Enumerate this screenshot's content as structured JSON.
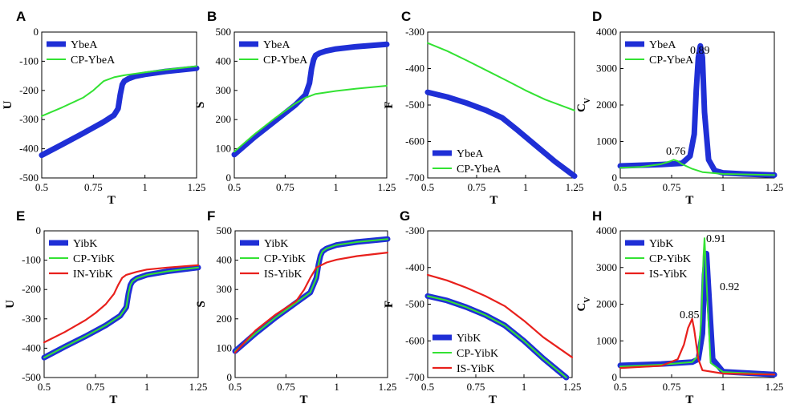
{
  "chart_data": [
    {
      "panel": "A",
      "type": "line",
      "xlabel": "T",
      "ylabel": "U",
      "xlim": [
        0.5,
        1.25
      ],
      "ylim": [
        -500,
        0
      ],
      "xticks": [
        "0.5",
        "0.75",
        "1",
        "1.25"
      ],
      "yticks": [
        "-500",
        "-400",
        "-300",
        "-200",
        "-100",
        "0"
      ],
      "legend_position": "top-left",
      "series": [
        {
          "name": "YbeA",
          "color": "#1f2fd6",
          "x": [
            0.5,
            0.6,
            0.7,
            0.8,
            0.85,
            0.87,
            0.88,
            0.89,
            0.9,
            0.92,
            0.95,
            1.0,
            1.1,
            1.25
          ],
          "y": [
            -422,
            -385,
            -347,
            -308,
            -285,
            -262,
            -215,
            -180,
            -168,
            -160,
            -152,
            -145,
            -135,
            -124
          ]
        },
        {
          "name": "CP-YbeA",
          "color": "#33e233",
          "x": [
            0.5,
            0.6,
            0.7,
            0.75,
            0.8,
            0.85,
            0.9,
            1.0,
            1.1,
            1.25
          ],
          "y": [
            -288,
            -258,
            -225,
            -200,
            -168,
            -155,
            -148,
            -138,
            -129,
            -117
          ]
        }
      ]
    },
    {
      "panel": "B",
      "type": "line",
      "xlabel": "",
      "ylabel": "S",
      "xlim": [
        0.5,
        1.25
      ],
      "ylim": [
        0,
        500
      ],
      "xticks": [
        "0.5",
        "0.75",
        "1",
        "1.25"
      ],
      "yticks": [
        "0",
        "100",
        "200",
        "300",
        "400",
        "500"
      ],
      "legend_position": "top-left",
      "series": [
        {
          "name": "YbeA",
          "color": "#1f2fd6",
          "x": [
            0.5,
            0.6,
            0.7,
            0.8,
            0.85,
            0.87,
            0.88,
            0.89,
            0.9,
            0.92,
            0.95,
            1.0,
            1.1,
            1.25
          ],
          "y": [
            80,
            140,
            195,
            250,
            285,
            325,
            375,
            405,
            420,
            428,
            435,
            442,
            450,
            458
          ]
        },
        {
          "name": "CP-YbeA",
          "color": "#33e233",
          "x": [
            0.5,
            0.6,
            0.7,
            0.8,
            0.85,
            0.9,
            1.0,
            1.1,
            1.25
          ],
          "y": [
            90,
            150,
            205,
            255,
            275,
            288,
            298,
            306,
            316
          ]
        }
      ]
    },
    {
      "panel": "C",
      "type": "line",
      "xlabel": "T",
      "ylabel": "F",
      "xlim": [
        0.5,
        1.25
      ],
      "ylim": [
        -700,
        -300
      ],
      "xticks": [
        "0.5",
        "0.75",
        "1",
        "1.25"
      ],
      "yticks": [
        "-700",
        "-600",
        "-500",
        "-400",
        "-300"
      ],
      "legend_position": "bottom-left",
      "series": [
        {
          "name": "YbeA",
          "color": "#1f2fd6",
          "x": [
            0.5,
            0.6,
            0.7,
            0.8,
            0.88,
            0.95,
            1.05,
            1.15,
            1.25
          ],
          "y": [
            -465,
            -478,
            -495,
            -515,
            -535,
            -565,
            -610,
            -655,
            -695
          ]
        },
        {
          "name": "CP-YbeA",
          "color": "#33e233",
          "x": [
            0.5,
            0.6,
            0.7,
            0.8,
            0.9,
            1.0,
            1.1,
            1.25
          ],
          "y": [
            -330,
            -352,
            -378,
            -405,
            -432,
            -460,
            -485,
            -515
          ]
        }
      ]
    },
    {
      "panel": "D",
      "type": "line",
      "xlabel": "T",
      "ylabel": "Cv",
      "xlim": [
        0.5,
        1.25
      ],
      "ylim": [
        0,
        4000
      ],
      "xticks": [
        "0.5",
        "0.75",
        "1",
        "1.25"
      ],
      "yticks": [
        "0",
        "1000",
        "2000",
        "3000",
        "4000"
      ],
      "legend_position": "top-left",
      "annotations": [
        "0.89",
        "0.76"
      ],
      "series": [
        {
          "name": "YbeA",
          "color": "#1f2fd6",
          "x": [
            0.5,
            0.6,
            0.7,
            0.8,
            0.84,
            0.86,
            0.87,
            0.88,
            0.89,
            0.9,
            0.91,
            0.93,
            0.96,
            1.0,
            1.1,
            1.25
          ],
          "y": [
            330,
            350,
            370,
            400,
            600,
            1200,
            2400,
            3300,
            3620,
            3300,
            1800,
            500,
            200,
            140,
            110,
            80
          ]
        },
        {
          "name": "CP-YbeA",
          "color": "#33e233",
          "x": [
            0.5,
            0.6,
            0.7,
            0.74,
            0.76,
            0.78,
            0.8,
            0.85,
            0.9,
            1.0,
            1.25
          ],
          "y": [
            280,
            300,
            380,
            450,
            500,
            460,
            380,
            250,
            160,
            110,
            80
          ]
        }
      ]
    },
    {
      "panel": "E",
      "type": "line",
      "xlabel": "T",
      "ylabel": "U",
      "xlim": [
        0.5,
        1.25
      ],
      "ylim": [
        -500,
        0
      ],
      "xticks": [
        "0.5",
        "0.75",
        "1",
        "1.25"
      ],
      "yticks": [
        "-500",
        "-400",
        "-300",
        "-200",
        "-100",
        "0"
      ],
      "legend_position": "top-left",
      "series": [
        {
          "name": "YibK",
          "color": "#1f2fd6",
          "x": [
            0.5,
            0.6,
            0.7,
            0.8,
            0.87,
            0.9,
            0.91,
            0.92,
            0.93,
            0.95,
            1.0,
            1.1,
            1.25
          ],
          "y": [
            -432,
            -395,
            -360,
            -322,
            -290,
            -260,
            -215,
            -185,
            -172,
            -162,
            -150,
            -138,
            -125
          ]
        },
        {
          "name": "CP-YibK",
          "color": "#33e233",
          "x": [
            0.5,
            0.6,
            0.7,
            0.8,
            0.87,
            0.9,
            0.91,
            0.92,
            0.93,
            0.95,
            1.0,
            1.1,
            1.25
          ],
          "y": [
            -432,
            -395,
            -360,
            -322,
            -290,
            -260,
            -215,
            -185,
            -172,
            -162,
            -150,
            -138,
            -125
          ]
        },
        {
          "name": "IN-YibK",
          "color": "#e8201c",
          "x": [
            0.5,
            0.6,
            0.7,
            0.75,
            0.8,
            0.84,
            0.86,
            0.88,
            0.9,
            0.95,
            1.0,
            1.1,
            1.25
          ],
          "y": [
            -380,
            -345,
            -305,
            -280,
            -250,
            -215,
            -185,
            -160,
            -150,
            -140,
            -132,
            -125,
            -117
          ]
        }
      ]
    },
    {
      "panel": "F",
      "type": "line",
      "xlabel": "T",
      "ylabel": "S",
      "xlim": [
        0.5,
        1.25
      ],
      "ylim": [
        0,
        500
      ],
      "xticks": [
        "0.5",
        "0.75",
        "1",
        "1.25"
      ],
      "yticks": [
        "0",
        "100",
        "200",
        "300",
        "400",
        "500"
      ],
      "legend_position": "top-left",
      "series": [
        {
          "name": "YibK",
          "color": "#1f2fd6",
          "x": [
            0.5,
            0.6,
            0.7,
            0.8,
            0.87,
            0.9,
            0.91,
            0.92,
            0.93,
            0.95,
            1.0,
            1.1,
            1.25
          ],
          "y": [
            90,
            150,
            205,
            255,
            290,
            340,
            385,
            415,
            430,
            440,
            452,
            462,
            472
          ]
        },
        {
          "name": "CP-YibK",
          "color": "#33e233",
          "x": [
            0.5,
            0.6,
            0.7,
            0.8,
            0.87,
            0.9,
            0.91,
            0.92,
            0.93,
            0.95,
            1.0,
            1.1,
            1.25
          ],
          "y": [
            90,
            150,
            205,
            255,
            290,
            340,
            385,
            415,
            430,
            440,
            452,
            462,
            472
          ]
        },
        {
          "name": "IS-YibK",
          "color": "#e8201c",
          "x": [
            0.5,
            0.6,
            0.7,
            0.8,
            0.84,
            0.87,
            0.9,
            0.95,
            1.0,
            1.1,
            1.25
          ],
          "y": [
            85,
            160,
            215,
            260,
            300,
            340,
            375,
            392,
            402,
            414,
            426
          ]
        }
      ]
    },
    {
      "panel": "G",
      "type": "line",
      "xlabel": "T",
      "ylabel": "F",
      "xlim": [
        0.5,
        1.25
      ],
      "ylim": [
        -700,
        -300
      ],
      "xticks": [
        "0.5",
        "0.75",
        "1",
        "1.25"
      ],
      "yticks": [
        "-700",
        "-600",
        "-500",
        "-400",
        "-300"
      ],
      "legend_position": "bottom-left",
      "series": [
        {
          "name": "YibK",
          "color": "#1f2fd6",
          "x": [
            0.5,
            0.6,
            0.7,
            0.8,
            0.9,
            1.0,
            1.1,
            1.22
          ],
          "y": [
            -478,
            -490,
            -508,
            -530,
            -558,
            -600,
            -648,
            -700
          ]
        },
        {
          "name": "CP-YibK",
          "color": "#33e233",
          "x": [
            0.5,
            0.6,
            0.7,
            0.8,
            0.9,
            1.0,
            1.1,
            1.22
          ],
          "y": [
            -478,
            -490,
            -508,
            -530,
            -558,
            -600,
            -648,
            -700
          ]
        },
        {
          "name": "IS-YibK",
          "color": "#e8201c",
          "x": [
            0.5,
            0.6,
            0.7,
            0.8,
            0.9,
            1.0,
            1.1,
            1.25
          ],
          "y": [
            -420,
            -435,
            -455,
            -478,
            -505,
            -545,
            -590,
            -645
          ]
        }
      ]
    },
    {
      "panel": "H",
      "type": "line",
      "xlabel": "T",
      "ylabel": "Cv",
      "xlim": [
        0.5,
        1.25
      ],
      "ylim": [
        0,
        4000
      ],
      "xticks": [
        "0.5",
        "0.75",
        "1",
        "1.25"
      ],
      "yticks": [
        "0",
        "1000",
        "2000",
        "3000",
        "4000"
      ],
      "legend_position": "top-left",
      "annotations": [
        "0.91",
        "0.92",
        "0.85"
      ],
      "series": [
        {
          "name": "YibK",
          "color": "#1f2fd6",
          "x": [
            0.5,
            0.7,
            0.85,
            0.88,
            0.9,
            0.91,
            0.92,
            0.93,
            0.95,
            1.0,
            1.25
          ],
          "y": [
            330,
            370,
            420,
            500,
            1200,
            2800,
            3380,
            2400,
            500,
            160,
            80
          ]
        },
        {
          "name": "CP-YibK",
          "color": "#33e233",
          "x": [
            0.5,
            0.7,
            0.85,
            0.88,
            0.895,
            0.905,
            0.91,
            0.92,
            0.94,
            1.0,
            1.25
          ],
          "y": [
            300,
            350,
            420,
            600,
            1600,
            3300,
            3800,
            2600,
            400,
            150,
            80
          ]
        },
        {
          "name": "IS-YibK",
          "color": "#e8201c",
          "x": [
            0.5,
            0.7,
            0.78,
            0.81,
            0.83,
            0.85,
            0.86,
            0.88,
            0.9,
            1.0,
            1.25
          ],
          "y": [
            260,
            320,
            500,
            900,
            1350,
            1600,
            1300,
            500,
            200,
            110,
            80
          ]
        }
      ]
    }
  ],
  "panel_labels": [
    "A",
    "B",
    "C",
    "D",
    "E",
    "F",
    "G",
    "H"
  ],
  "cv_label": {
    "main": "C",
    "sub": "V"
  }
}
